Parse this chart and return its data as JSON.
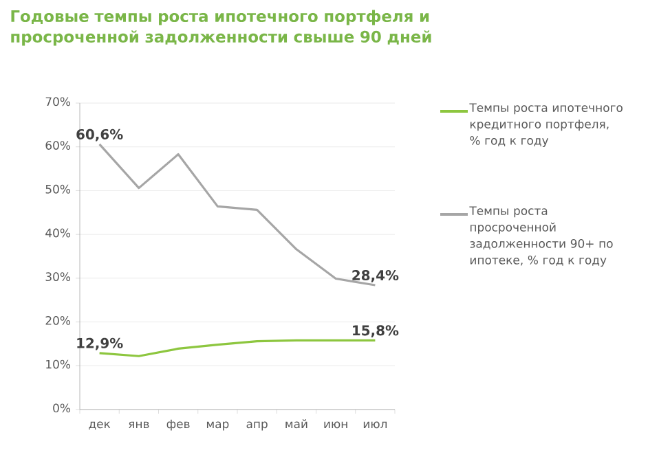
{
  "chart_data": {
    "type": "line",
    "title": "Годовые темпы роста ипотечного портфеля и просроченной задолженности свыше 90 дней",
    "categories": [
      "дек",
      "янв",
      "фев",
      "мар",
      "апр",
      "май",
      "июн",
      "июл"
    ],
    "series": [
      {
        "name": "Темпы роста ипотечного кредитного портфеля, % год к году",
        "color": "#8dc63f",
        "values": [
          12.9,
          12.2,
          13.9,
          14.8,
          15.6,
          15.8,
          15.8,
          15.8
        ],
        "value_labels": [
          "12,9%",
          null,
          null,
          null,
          null,
          null,
          null,
          "15,8%"
        ]
      },
      {
        "name": "Темпы роста просроченной задолженности 90+ по ипотеке, % год к году",
        "color": "#a6a6a6",
        "values": [
          60.6,
          50.6,
          58.3,
          46.4,
          45.6,
          36.6,
          29.9,
          28.4
        ],
        "value_labels": [
          "60,6%",
          null,
          null,
          null,
          null,
          null,
          null,
          "28,4%"
        ]
      }
    ],
    "ylim": [
      0,
      70
    ],
    "yticks": [
      {
        "value": 0,
        "label": "0%"
      },
      {
        "value": 10,
        "label": "10%"
      },
      {
        "value": 20,
        "label": "20%"
      },
      {
        "value": 30,
        "label": "30%"
      },
      {
        "value": 40,
        "label": "40%"
      },
      {
        "value": 50,
        "label": "50%"
      },
      {
        "value": 60,
        "label": "60%"
      },
      {
        "value": 70,
        "label": "70%"
      }
    ],
    "grid": "y",
    "legend": "right",
    "marker": "none",
    "line_style": "solid"
  }
}
